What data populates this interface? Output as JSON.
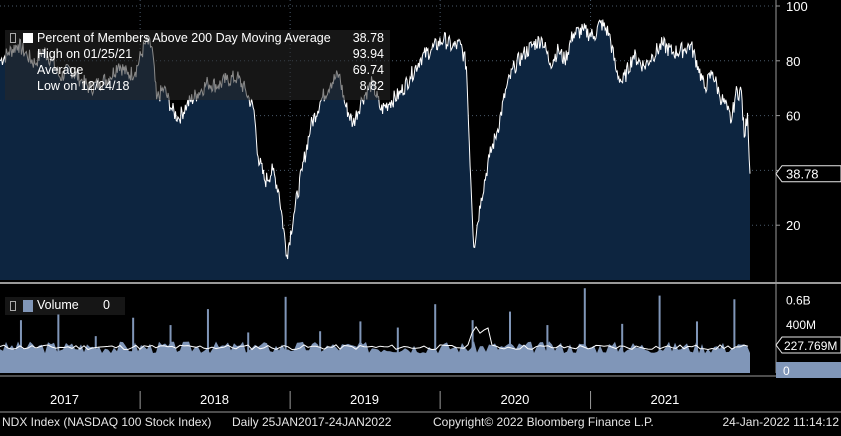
{
  "colors": {
    "background": "#000000",
    "area_fill": "#0d2540",
    "line": "#ffffff",
    "volume_fill": "#8096b8",
    "grid": "#4a5a6a",
    "separator": "#9a9a9a",
    "badge_bg": "#e8e8e8"
  },
  "legend": {
    "series_label": "Percent of Members Above 200 Day Moving Average",
    "last_value": "38.78",
    "high_label": "High on 01/25/21",
    "high_value": "93.94",
    "avg_label": "Average",
    "avg_value": "69.74",
    "low_label": "Low on 12/24/18",
    "low_value": "8.82"
  },
  "volume_legend": {
    "label": "Volume",
    "value": "0"
  },
  "last_price_badge": "38.78",
  "volume_badges": {
    "ma": "227.769M",
    "last": "0"
  },
  "x_axis_years": [
    "2017",
    "2018",
    "2019",
    "2020",
    "2021"
  ],
  "footer": {
    "ticker": "NDX Index (NASDAQ 100 Stock Index)",
    "range": "Daily 25JAN2017-24JAN2022",
    "copyright": "Copyright© 2022 Bloomberg Finance L.P.",
    "timestamp": "24-Jan-2022 11:14:12"
  },
  "chart_data": [
    {
      "type": "area",
      "series": [
        {
          "name": "Percent of Members Above 200 Day Moving Average"
        }
      ],
      "ylim": [
        0,
        100
      ],
      "y_ticks": [
        20,
        40,
        60,
        80,
        100
      ],
      "y_tick_labels": [
        "20",
        "",
        "60",
        "80",
        "100"
      ],
      "grid": true,
      "x_start": "2017-01-25",
      "x_end": "2022-01-24",
      "x_tick_labels": [
        "2017",
        "2018",
        "2019",
        "2020",
        "2021"
      ],
      "last": 38.78,
      "high": 93.94,
      "average": 69.74,
      "low": 8.82,
      "points": [
        [
          "2017-01-25",
          80
        ],
        [
          "2017-02-15",
          83
        ],
        [
          "2017-03-10",
          86
        ],
        [
          "2017-04-01",
          82
        ],
        [
          "2017-04-20",
          79
        ],
        [
          "2017-05-10",
          84
        ],
        [
          "2017-06-01",
          80
        ],
        [
          "2017-06-20",
          74
        ],
        [
          "2017-07-15",
          77
        ],
        [
          "2017-08-10",
          73
        ],
        [
          "2017-09-01",
          70
        ],
        [
          "2017-09-25",
          72
        ],
        [
          "2017-10-20",
          74
        ],
        [
          "2017-11-10",
          79
        ],
        [
          "2017-12-01",
          75
        ],
        [
          "2017-12-20",
          76
        ],
        [
          "2018-01-15",
          87
        ],
        [
          "2018-01-30",
          85
        ],
        [
          "2018-02-10",
          66
        ],
        [
          "2018-02-28",
          70
        ],
        [
          "2018-03-20",
          62
        ],
        [
          "2018-04-05",
          59
        ],
        [
          "2018-04-25",
          64
        ],
        [
          "2018-05-20",
          68
        ],
        [
          "2018-06-15",
          72
        ],
        [
          "2018-07-10",
          71
        ],
        [
          "2018-07-30",
          73
        ],
        [
          "2018-08-25",
          74
        ],
        [
          "2018-09-15",
          69
        ],
        [
          "2018-10-05",
          62
        ],
        [
          "2018-10-15",
          45
        ],
        [
          "2018-11-01",
          36
        ],
        [
          "2018-11-20",
          40
        ],
        [
          "2018-12-05",
          32
        ],
        [
          "2018-12-24",
          9
        ],
        [
          "2019-01-10",
          24
        ],
        [
          "2019-01-30",
          40
        ],
        [
          "2019-02-20",
          56
        ],
        [
          "2019-03-15",
          65
        ],
        [
          "2019-04-10",
          72
        ],
        [
          "2019-04-30",
          75
        ],
        [
          "2019-05-15",
          64
        ],
        [
          "2019-06-03",
          57
        ],
        [
          "2019-06-25",
          66
        ],
        [
          "2019-07-20",
          72
        ],
        [
          "2019-08-10",
          62
        ],
        [
          "2019-09-01",
          65
        ],
        [
          "2019-09-25",
          68
        ],
        [
          "2019-10-20",
          74
        ],
        [
          "2019-11-15",
          81
        ],
        [
          "2019-12-10",
          84
        ],
        [
          "2020-01-10",
          88
        ],
        [
          "2020-01-31",
          85
        ],
        [
          "2020-02-20",
          86
        ],
        [
          "2020-03-05",
          78
        ],
        [
          "2020-03-12",
          50
        ],
        [
          "2020-03-23",
          12
        ],
        [
          "2020-04-10",
          30
        ],
        [
          "2020-04-30",
          45
        ],
        [
          "2020-05-20",
          55
        ],
        [
          "2020-06-10",
          70
        ],
        [
          "2020-06-30",
          78
        ],
        [
          "2020-07-20",
          82
        ],
        [
          "2020-08-15",
          86
        ],
        [
          "2020-09-05",
          88
        ],
        [
          "2020-09-25",
          79
        ],
        [
          "2020-10-15",
          84
        ],
        [
          "2020-10-30",
          80
        ],
        [
          "2020-11-20",
          90
        ],
        [
          "2020-12-15",
          91
        ],
        [
          "2021-01-10",
          89
        ],
        [
          "2021-01-25",
          94
        ],
        [
          "2021-02-15",
          90
        ],
        [
          "2021-03-05",
          76
        ],
        [
          "2021-03-20",
          72
        ],
        [
          "2021-04-15",
          82
        ],
        [
          "2021-05-12",
          78
        ],
        [
          "2021-06-01",
          82
        ],
        [
          "2021-06-25",
          86
        ],
        [
          "2021-07-20",
          83
        ],
        [
          "2021-08-15",
          84
        ],
        [
          "2021-09-01",
          86
        ],
        [
          "2021-09-20",
          78
        ],
        [
          "2021-10-05",
          70
        ],
        [
          "2021-10-25",
          76
        ],
        [
          "2021-11-10",
          68
        ],
        [
          "2021-11-30",
          62
        ],
        [
          "2021-12-10",
          58
        ],
        [
          "2021-12-20",
          68
        ],
        [
          "2022-01-03",
          69
        ],
        [
          "2022-01-10",
          52
        ],
        [
          "2022-01-18",
          61
        ],
        [
          "2022-01-24",
          38.78
        ]
      ]
    },
    {
      "type": "bar",
      "series": [
        {
          "name": "Volume"
        }
      ],
      "ylim": [
        0,
        700000000
      ],
      "y_tick_labels": [
        "0.6B",
        "400M"
      ],
      "y_ticks": [
        600000000,
        400000000
      ],
      "moving_average_last": 227769000,
      "last": 0,
      "baseline": 200000000,
      "spikes": [
        [
          "2017-03-17",
          430000000
        ],
        [
          "2017-06-16",
          480000000
        ],
        [
          "2017-09-15",
          300000000
        ],
        [
          "2017-12-15",
          450000000
        ],
        [
          "2018-03-16",
          390000000
        ],
        [
          "2018-06-15",
          520000000
        ],
        [
          "2018-09-21",
          330000000
        ],
        [
          "2018-12-21",
          620000000
        ],
        [
          "2019-03-15",
          340000000
        ],
        [
          "2019-06-21",
          420000000
        ],
        [
          "2019-09-20",
          370000000
        ],
        [
          "2019-12-20",
          560000000
        ],
        [
          "2020-03-20",
          430000000
        ],
        [
          "2020-06-19",
          500000000
        ],
        [
          "2020-09-18",
          390000000
        ],
        [
          "2020-12-18",
          690000000
        ],
        [
          "2021-03-19",
          400000000
        ],
        [
          "2021-06-18",
          630000000
        ],
        [
          "2021-09-17",
          420000000
        ],
        [
          "2021-12-17",
          600000000
        ]
      ]
    }
  ]
}
